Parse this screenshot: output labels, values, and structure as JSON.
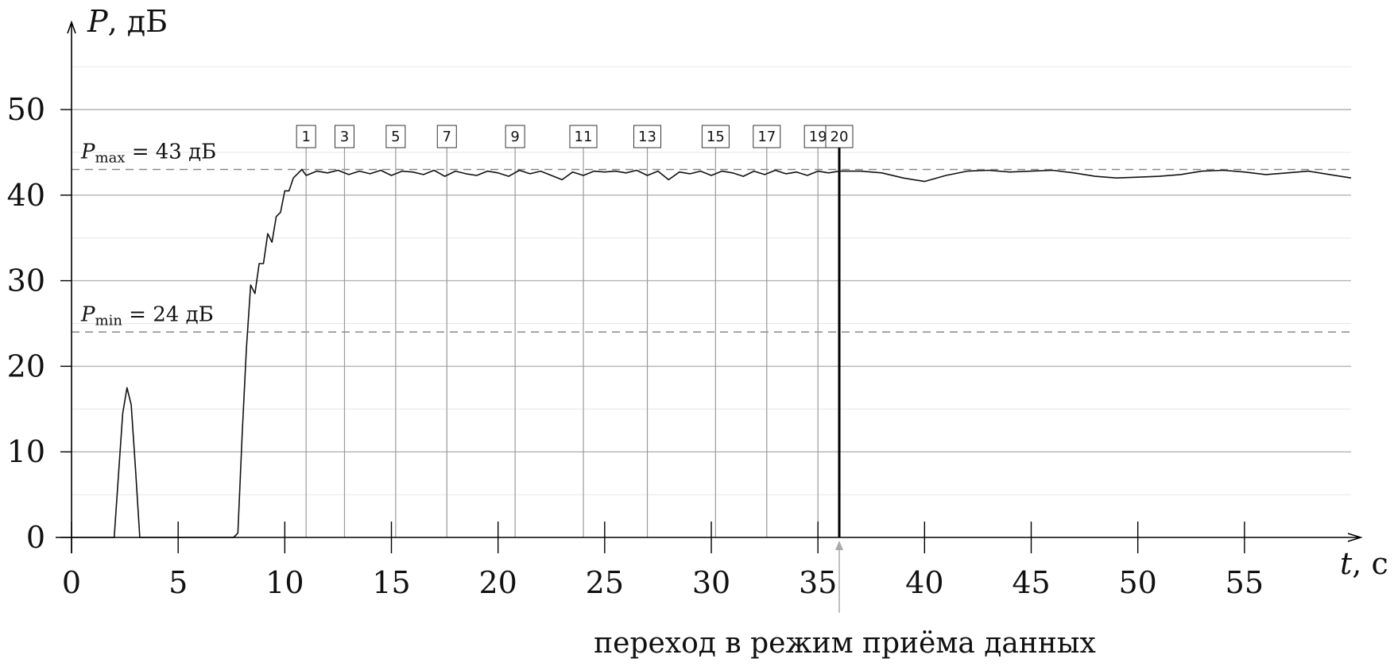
{
  "chart_data": {
    "type": "line",
    "xlabel_var": "t",
    "xlabel_unit": ", с",
    "ylabel_var": "P",
    "ylabel_unit": ", дБ",
    "xlim": [
      0,
      60
    ],
    "ylim": [
      0,
      55
    ],
    "x_ticks": [
      0,
      5,
      10,
      15,
      20,
      25,
      30,
      35,
      40,
      45,
      50,
      55
    ],
    "y_ticks": [
      0,
      10,
      20,
      30,
      40,
      50
    ],
    "grid": true,
    "reference_lines": [
      {
        "value": 43,
        "label_var": "P",
        "label_sub": "max",
        "label_text": " = 43 дБ"
      },
      {
        "value": 24,
        "label_var": "P",
        "label_sub": "min",
        "label_text": " = 24 дБ"
      }
    ],
    "markers": [
      {
        "label": "1",
        "x": 11.0
      },
      {
        "label": "3",
        "x": 12.8
      },
      {
        "label": "5",
        "x": 15.2
      },
      {
        "label": "7",
        "x": 17.6
      },
      {
        "label": "9",
        "x": 20.8
      },
      {
        "label": "11",
        "x": 24.0
      },
      {
        "label": "13",
        "x": 27.0
      },
      {
        "label": "15",
        "x": 30.2
      },
      {
        "label": "17",
        "x": 32.6
      },
      {
        "label": "19",
        "x": 35.0
      },
      {
        "label": "20",
        "x": 36.0
      }
    ],
    "transition": {
      "x": 36.0,
      "label": "переход в режим приёма данных"
    },
    "series": [
      {
        "x": [
          0,
          2.0,
          2.4,
          2.6,
          2.8,
          3.0,
          3.2,
          7.6,
          7.8,
          8.0,
          8.2,
          8.4,
          8.6,
          8.8,
          9.0,
          9.2,
          9.4,
          9.6,
          9.8,
          10.0,
          10.2,
          10.4,
          10.6,
          10.8,
          11.0,
          11.5,
          12.0,
          12.5,
          13.0,
          13.5,
          14.0,
          14.5,
          15.0,
          15.5,
          16.0,
          16.5,
          17.0,
          17.5,
          18.0,
          18.5,
          19.0,
          19.5,
          20.0,
          20.5,
          21.0,
          21.5,
          22.0,
          22.5,
          23.0,
          23.5,
          24.0,
          24.5,
          25.0,
          25.5,
          26.0,
          26.5,
          27.0,
          27.5,
          28.0,
          28.5,
          29.0,
          29.5,
          30.0,
          30.5,
          31.0,
          31.5,
          32.0,
          32.5,
          33.0,
          33.5,
          34.0,
          34.5,
          35.0,
          35.5,
          36.0,
          37.0,
          38.0,
          39.0,
          40.0,
          41.0,
          42.0,
          43.0,
          44.0,
          45.0,
          46.0,
          47.0,
          48.0,
          49.0,
          50.0,
          51.0,
          52.0,
          53.0,
          54.0,
          55.0,
          56.0,
          57.0,
          58.0,
          59.0,
          60.0
        ],
        "y": [
          0,
          0,
          14.5,
          17.5,
          15.5,
          8.0,
          0,
          0,
          0.5,
          12.0,
          22.0,
          29.5,
          28.5,
          32.0,
          32.0,
          35.5,
          34.5,
          37.5,
          38.0,
          40.5,
          40.5,
          42.0,
          42.5,
          43.0,
          42.3,
          42.8,
          42.6,
          42.9,
          42.4,
          42.8,
          42.5,
          42.9,
          42.3,
          42.8,
          42.7,
          42.4,
          42.9,
          42.2,
          42.8,
          42.5,
          42.3,
          42.8,
          42.6,
          42.2,
          42.9,
          42.5,
          42.8,
          42.3,
          41.8,
          42.7,
          42.3,
          42.8,
          42.7,
          42.8,
          42.6,
          42.9,
          42.3,
          42.8,
          41.8,
          42.7,
          42.5,
          42.8,
          42.3,
          42.8,
          42.6,
          42.2,
          42.8,
          42.4,
          42.9,
          42.5,
          42.7,
          42.3,
          42.8,
          42.6,
          42.8,
          42.8,
          42.6,
          42.0,
          41.6,
          42.3,
          42.8,
          42.9,
          42.7,
          42.8,
          42.9,
          42.6,
          42.2,
          42.0,
          42.1,
          42.2,
          42.4,
          42.8,
          42.9,
          42.7,
          42.4,
          42.6,
          42.8,
          42.4,
          42.0
        ]
      }
    ]
  }
}
